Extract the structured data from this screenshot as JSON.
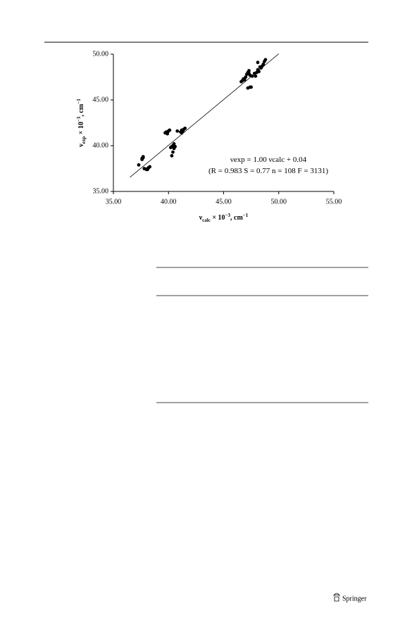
{
  "publisher": "Springer",
  "chart_data": {
    "type": "scatter",
    "x_label": [
      {
        "text": "ν"
      },
      {
        "text": "calc",
        "shift": "sub"
      },
      {
        "text": " × 10"
      },
      {
        "text": "−3",
        "shift": "sup"
      },
      {
        "text": ", cm"
      },
      {
        "text": "−1",
        "shift": "sup"
      }
    ],
    "y_label": [
      {
        "text": "ν"
      },
      {
        "text": "exp",
        "shift": "sub"
      },
      {
        "text": " × 10"
      },
      {
        "text": "−3",
        "shift": "sup"
      },
      {
        "text": ", cm"
      },
      {
        "text": "−1",
        "shift": "sup"
      }
    ],
    "annotations": [
      [
        {
          "text": "νexp = 1.00 νcalc + 0.04"
        }
      ],
      [
        {
          "text": "(R = 0.983 S = 0.77 n = 108 F = 3131)"
        }
      ]
    ],
    "fit": {
      "slope": 1.0,
      "intercept": 0.04,
      "x_range": [
        36.5,
        50.0
      ]
    },
    "color": "#000000",
    "x": [
      37.3,
      37.6,
      37.7,
      37.7,
      37.6,
      37.8,
      38.0,
      38.1,
      38.2,
      38.3,
      38.1,
      39.7,
      39.8,
      39.9,
      40.0,
      40.1,
      39.9,
      40.2,
      40.3,
      40.3,
      40.4,
      40.4,
      40.5,
      40.6,
      40.5,
      40.8,
      41.1,
      41.2,
      41.3,
      41.4,
      41.5,
      41.2,
      46.6,
      46.7,
      46.8,
      46.9,
      47.0,
      47.1,
      47.2,
      47.3,
      47.3,
      47.4,
      47.2,
      47.4,
      47.5,
      47.6,
      47.8,
      47.9,
      48.0,
      48.1,
      48.2,
      48.3,
      48.5,
      48.6,
      48.7,
      48.8,
      48.1,
      48.4
    ],
    "values": [
      37.9,
      38.6,
      38.7,
      38.8,
      38.5,
      37.5,
      37.4,
      37.5,
      37.6,
      37.7,
      37.4,
      41.4,
      41.5,
      41.4,
      41.6,
      41.7,
      41.3,
      39.8,
      39.9,
      38.9,
      39.3,
      40.0,
      40.2,
      39.9,
      39.7,
      41.6,
      41.5,
      41.7,
      41.6,
      41.8,
      41.9,
      41.4,
      47.0,
      47.1,
      47.3,
      47.2,
      47.5,
      47.8,
      48.0,
      48.2,
      47.9,
      47.7,
      46.3,
      46.4,
      46.4,
      47.6,
      47.9,
      47.6,
      48.0,
      48.3,
      48.1,
      48.6,
      48.7,
      48.9,
      49.2,
      49.4,
      49.1,
      48.5
    ],
    "xlim": [
      35,
      55
    ],
    "xticks": [
      {
        "value": 35,
        "label": "35.00"
      },
      {
        "value": 40,
        "label": "40.00"
      },
      {
        "value": 45,
        "label": "45.00"
      },
      {
        "value": 50,
        "label": "50.00"
      },
      {
        "value": 55,
        "label": "55.00"
      }
    ],
    "ylim": [
      35,
      50
    ],
    "yticks": [
      {
        "value": 35,
        "label": "35.00"
      },
      {
        "value": 40,
        "label": "40.00"
      },
      {
        "value": 45,
        "label": "45.00"
      },
      {
        "value": 50,
        "label": "50.00"
      }
    ]
  }
}
